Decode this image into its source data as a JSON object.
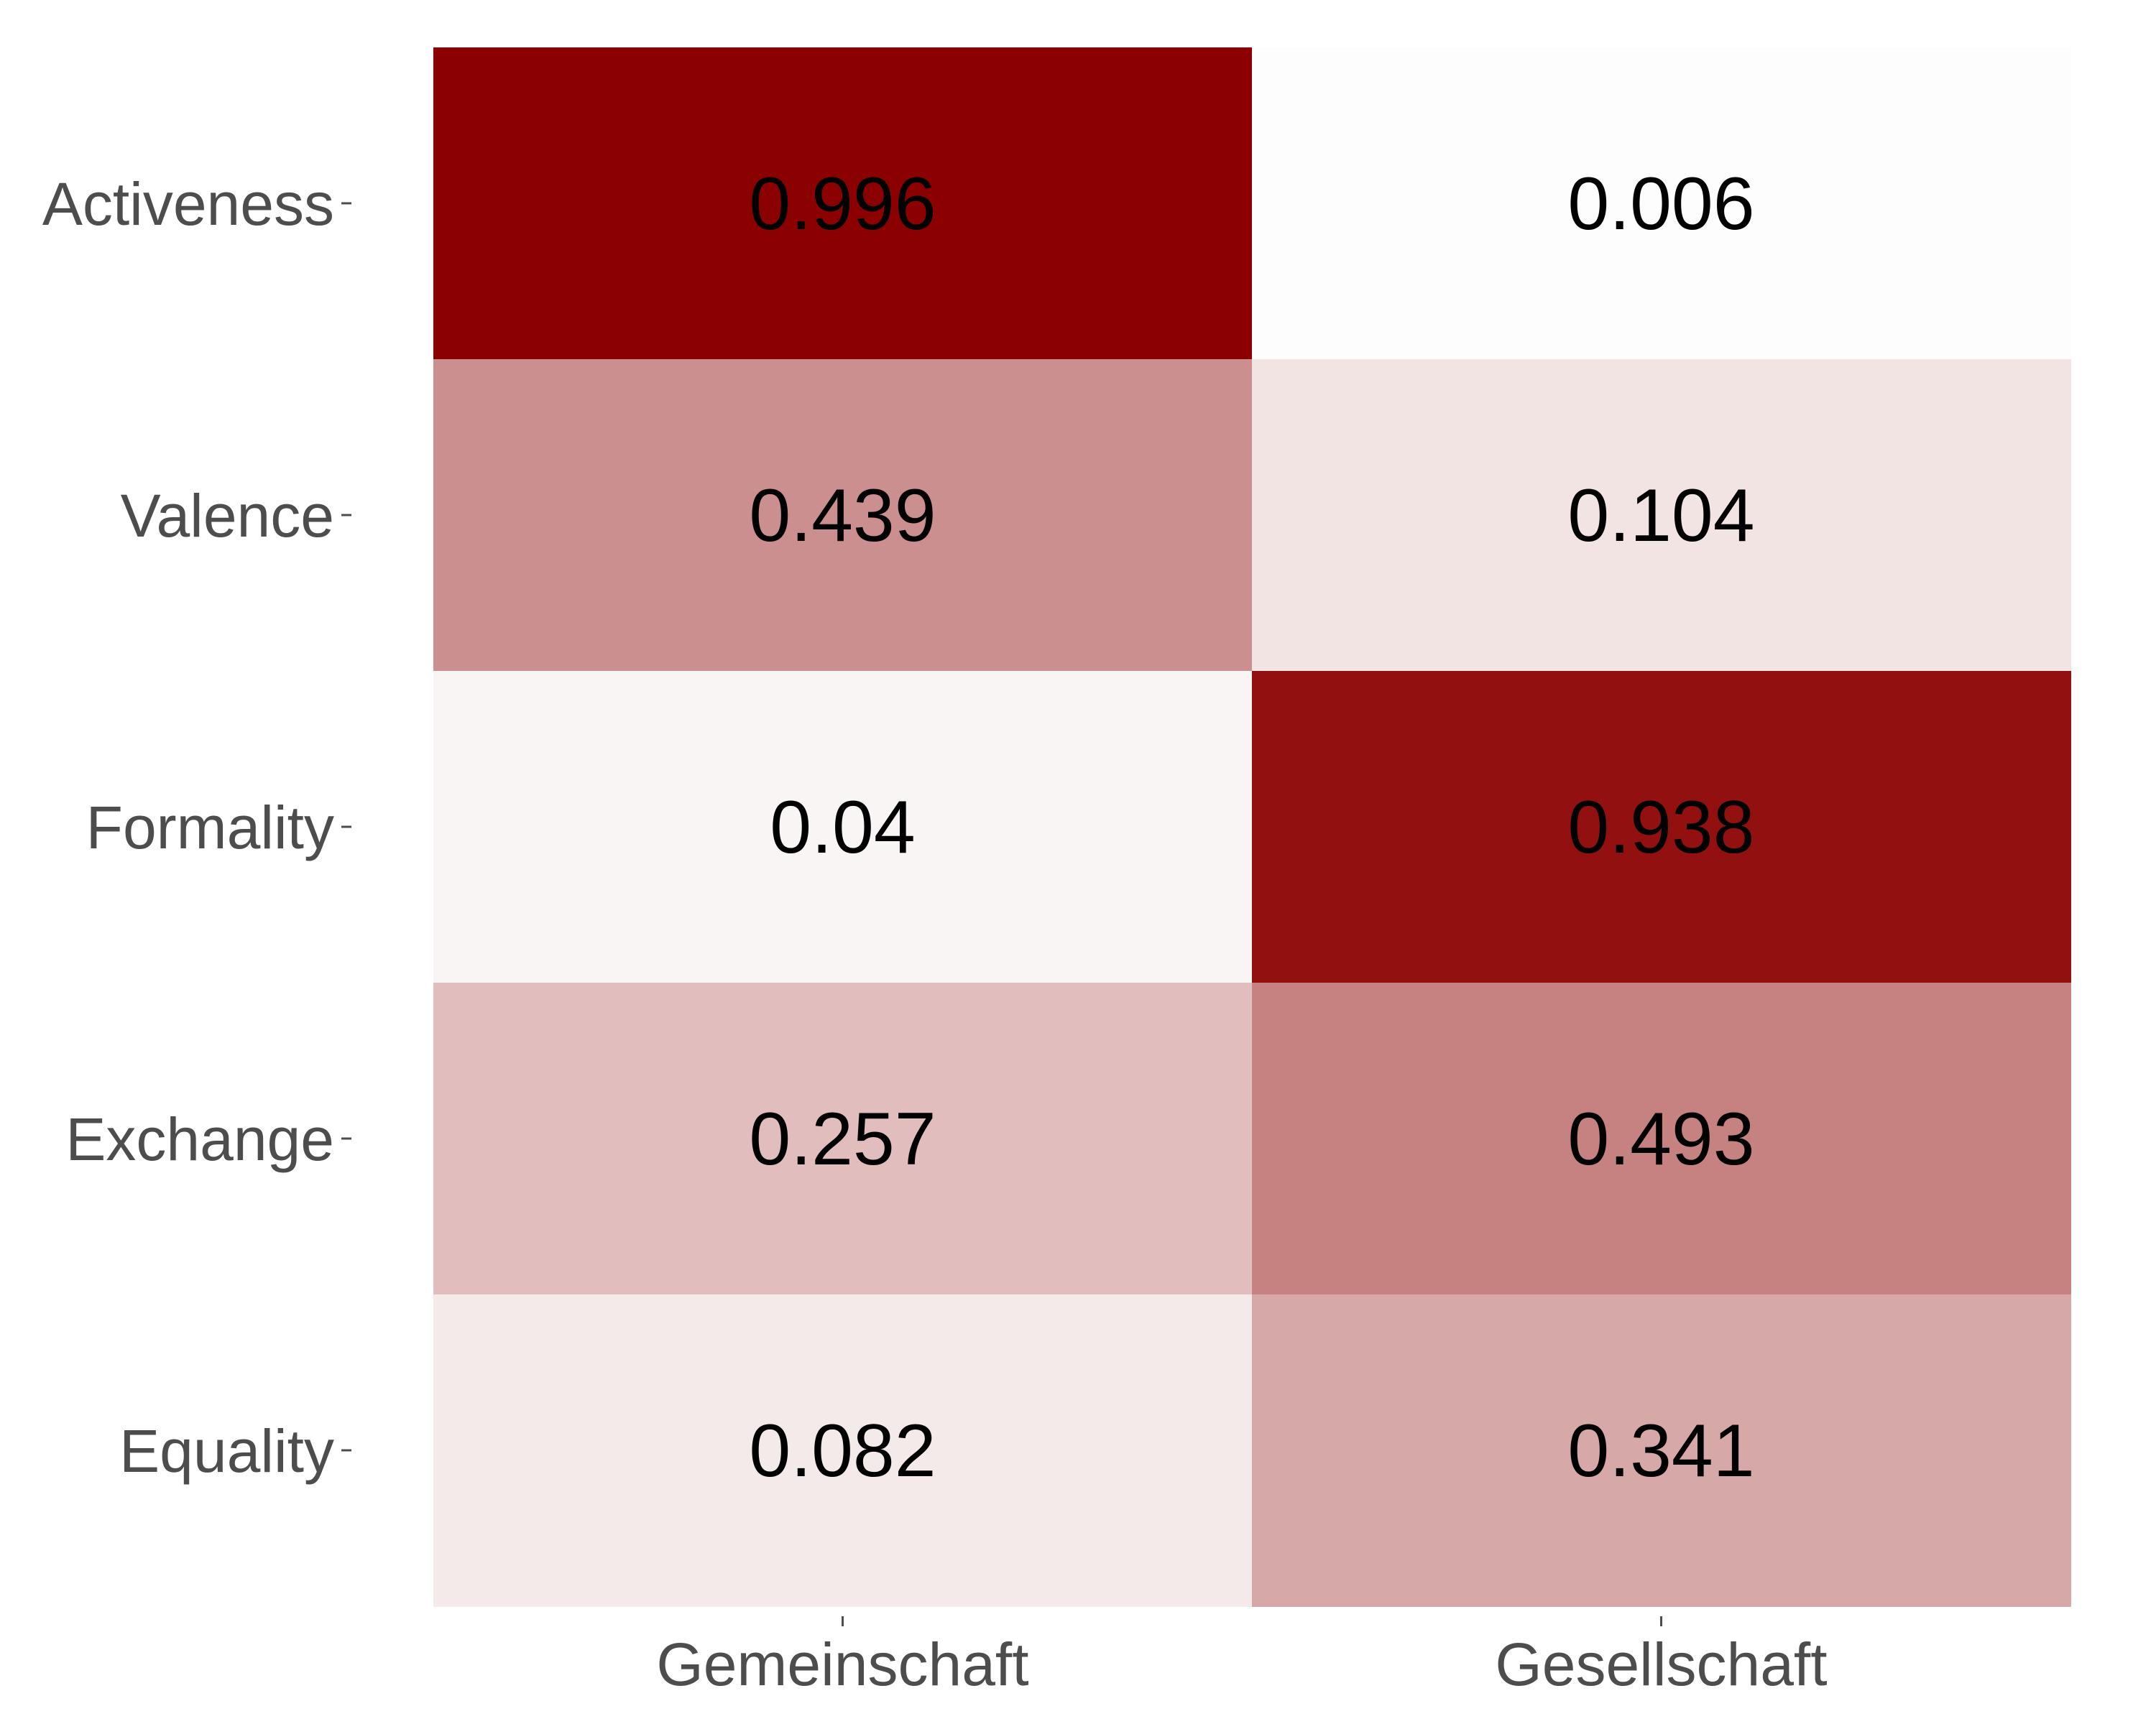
{
  "chart_data": {
    "type": "heatmap",
    "x_categories": [
      "Gemeinschaft",
      "Gesellschaft"
    ],
    "y_categories": [
      "Activeness",
      "Valence",
      "Formality",
      "Exchange",
      "Equality"
    ],
    "values": [
      [
        0.996,
        0.006
      ],
      [
        0.439,
        0.104
      ],
      [
        0.04,
        0.938
      ],
      [
        0.257,
        0.493
      ],
      [
        0.082,
        0.341
      ]
    ],
    "value_labels": [
      [
        "0.996",
        "0.006"
      ],
      [
        "0.439",
        "0.104"
      ],
      [
        "0.04",
        "0.938"
      ],
      [
        "0.257",
        "0.493"
      ],
      [
        "0.082",
        "0.341"
      ]
    ],
    "color_low": "#ffffff",
    "color_high": "#8b0000",
    "grid": false,
    "legend": "none",
    "title": "",
    "xlabel": "",
    "ylabel": ""
  }
}
